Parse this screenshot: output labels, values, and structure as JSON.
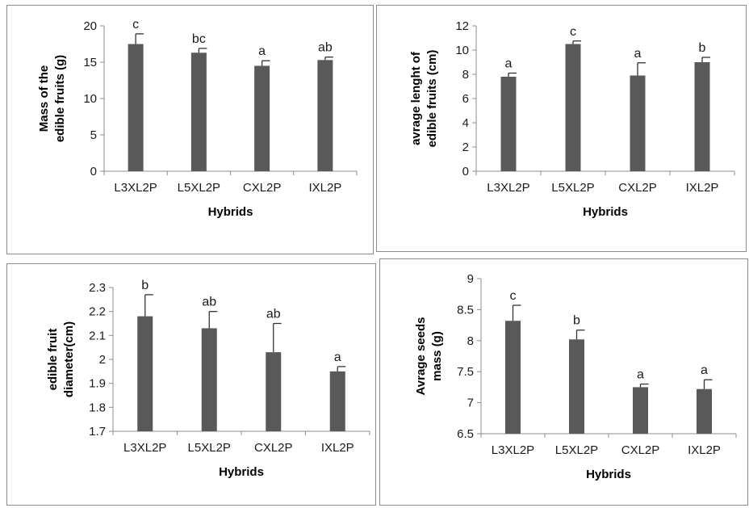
{
  "chart_data": [
    {
      "type": "bar",
      "title": "",
      "xlabel": "Hybrids",
      "ylabel": "Mass of the edible fruits (g)",
      "categories": [
        "L3XL2P",
        "L5XL2P",
        "CXL2P",
        "IXL2P"
      ],
      "values": [
        17.5,
        16.3,
        14.5,
        15.3
      ],
      "errors": [
        1.4,
        0.6,
        0.7,
        0.4
      ],
      "labels": [
        "c",
        "bc",
        "a",
        "ab"
      ],
      "ylim": [
        0,
        20
      ],
      "yticks": [
        "0",
        "5",
        "10",
        "15",
        "20"
      ],
      "bar_color": "#595959"
    },
    {
      "type": "bar",
      "title": "",
      "xlabel": "Hybrids",
      "ylabel": "avrage lenght of edible fruits (cm)",
      "categories": [
        "L3XL2P",
        "L5XL2P",
        "CXL2P",
        "IXL2P"
      ],
      "values": [
        7.8,
        10.5,
        7.9,
        9.0
      ],
      "errors": [
        0.3,
        0.25,
        1.05,
        0.4
      ],
      "labels": [
        "a",
        "c",
        "a",
        "b"
      ],
      "ylim": [
        0,
        12
      ],
      "yticks": [
        "0",
        "2",
        "4",
        "6",
        "8",
        "10",
        "12"
      ],
      "bar_color": "#595959"
    },
    {
      "type": "bar",
      "title": "",
      "xlabel": "Hybrids",
      "ylabel": "edible fruit diameter(cm)",
      "categories": [
        "L3XL2P",
        "L5XL2P",
        "CXL2P",
        "IXL2P"
      ],
      "values": [
        2.18,
        2.13,
        2.03,
        1.95
      ],
      "errors": [
        0.09,
        0.07,
        0.12,
        0.02
      ],
      "labels": [
        "b",
        "ab",
        "ab",
        "a"
      ],
      "ylim": [
        1.7,
        2.3
      ],
      "yticks": [
        "1.7",
        "1.8",
        "1.9",
        "2",
        "2.1",
        "2.2",
        "2.3"
      ],
      "bar_color": "#595959"
    },
    {
      "type": "bar",
      "title": "",
      "xlabel": "Hybrids",
      "ylabel": "Avrage seeds mass (g)",
      "categories": [
        "L3XL2P",
        "L5XL2P",
        "CXL2P",
        "IXL2P"
      ],
      "values": [
        8.32,
        8.02,
        7.25,
        7.22
      ],
      "errors": [
        0.25,
        0.15,
        0.05,
        0.15
      ],
      "labels": [
        "c",
        "b",
        "a",
        "a"
      ],
      "ylim": [
        6.5,
        9
      ],
      "yticks": [
        "6.5",
        "7",
        "7.5",
        "8",
        "8.5",
        "9"
      ],
      "bar_color": "#595959"
    }
  ]
}
